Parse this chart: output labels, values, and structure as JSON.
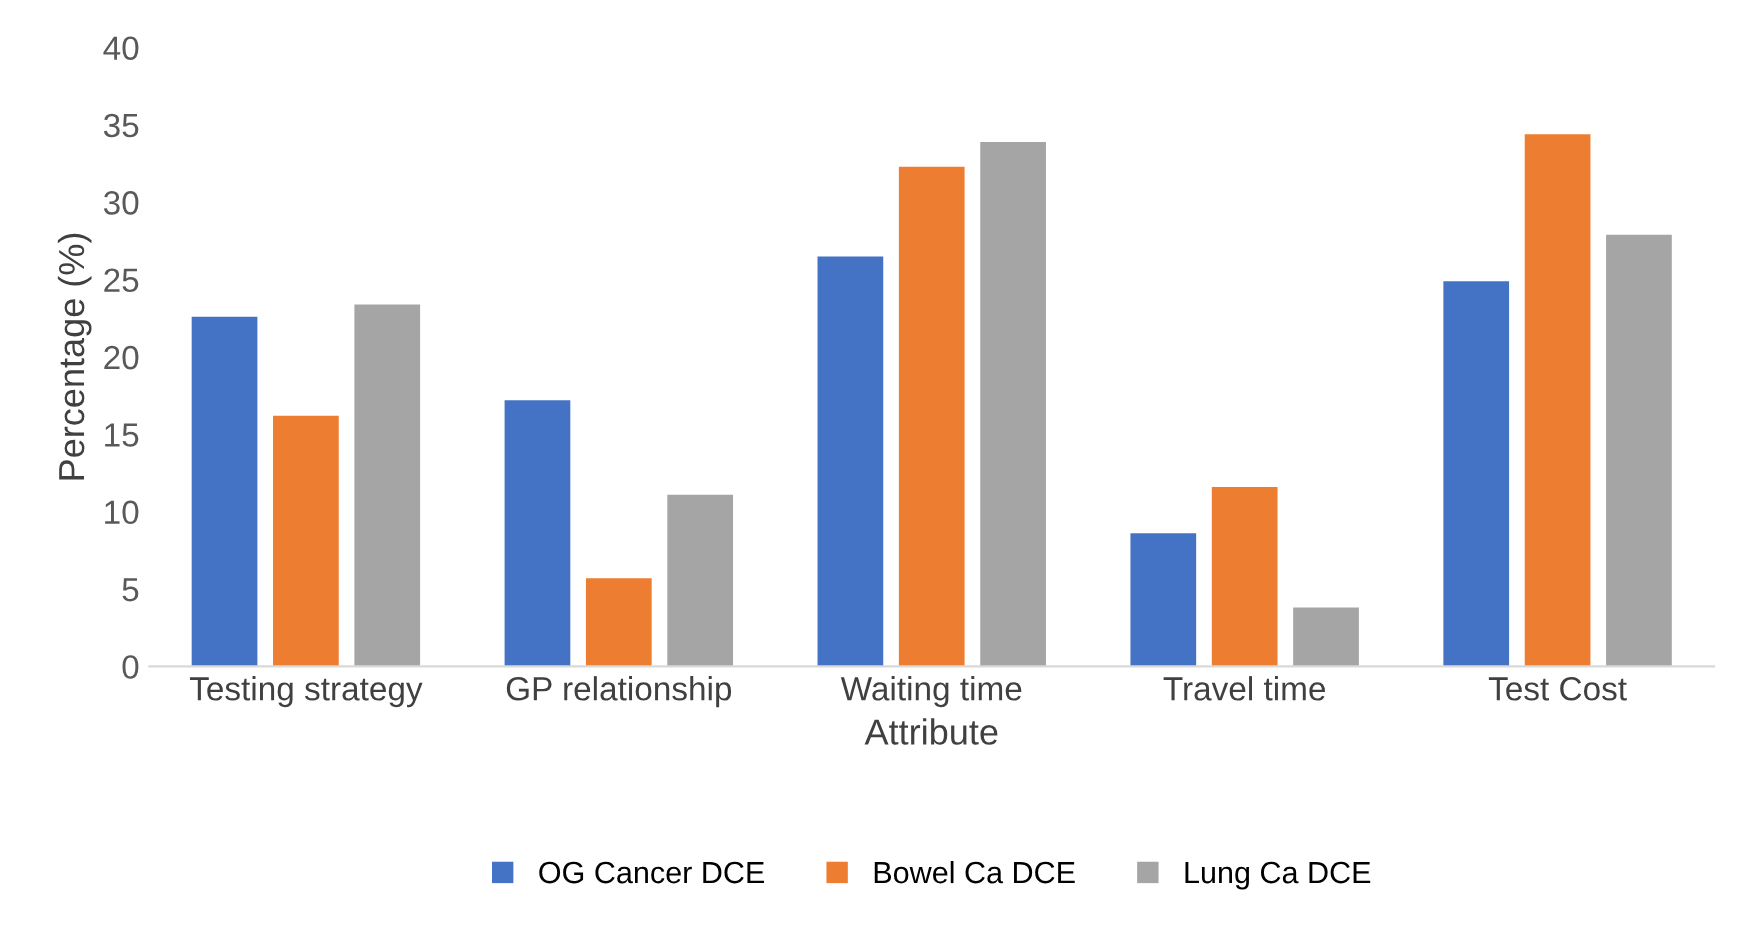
{
  "chart_data": {
    "type": "bar",
    "xlabel": "Attribute",
    "ylabel": "Percentage (%)",
    "categories": [
      "Testing strategy",
      "GP relationship",
      "Waiting time",
      "Travel time",
      "Test Cost"
    ],
    "series": [
      {
        "name": "OG Cancer DCE",
        "color": "#4472c4",
        "values": [
          22.6,
          17.2,
          26.5,
          8.6,
          24.9
        ]
      },
      {
        "name": "Bowel Ca DCE",
        "color": "#ed7d31",
        "values": [
          16.2,
          5.7,
          32.3,
          11.6,
          34.4
        ]
      },
      {
        "name": "Lung Ca DCE",
        "color": "#a5a5a5",
        "values": [
          23.4,
          11.1,
          33.9,
          3.8,
          27.9
        ]
      }
    ],
    "ylim": [
      0,
      40
    ],
    "yticks": [
      0,
      5,
      10,
      15,
      20,
      25,
      30,
      35,
      40
    ],
    "grid": false,
    "legend": "bottom"
  }
}
